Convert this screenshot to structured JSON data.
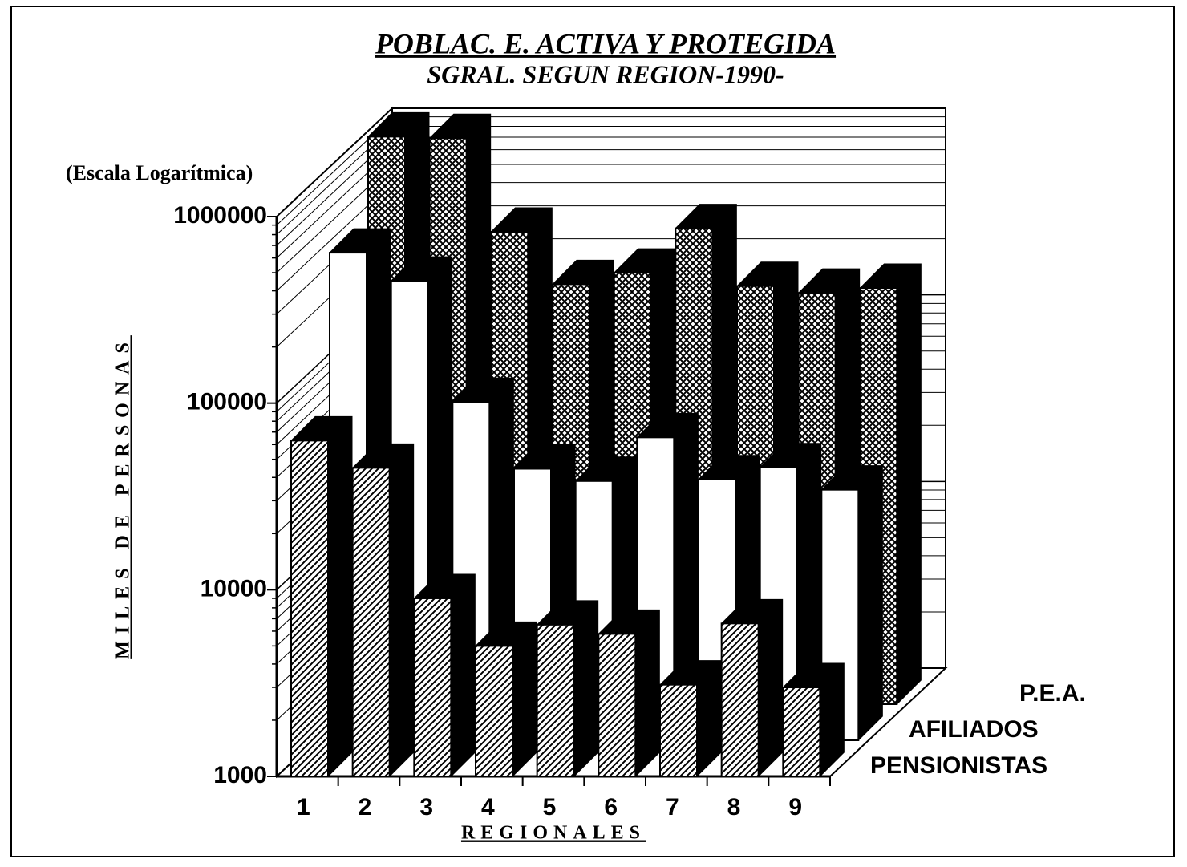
{
  "chart_data": {
    "type": "bar3d",
    "title": "POBLAC. E. ACTIVA Y PROTEGIDA",
    "subtitle": "SGRAL. SEGUN REGION-1990-",
    "annotation": "(Escala Logarítmica)",
    "y_label": "MILES DE PERSONAS",
    "x_label": "REGIONALES",
    "categories": [
      "1",
      "2",
      "3",
      "4",
      "5",
      "6",
      "7",
      "8",
      "9"
    ],
    "log_scale": true,
    "grid": true,
    "ylim": [
      1000,
      1000000
    ],
    "yticks": [
      1000,
      10000,
      100000,
      1000000
    ],
    "series": [
      {
        "name": "P.E.A.",
        "color": "#000000",
        "pattern": "crosshatch",
        "values": [
          1100000,
          1080000,
          340000,
          178000,
          205000,
          355000,
          174000,
          160000,
          170000
        ]
      },
      {
        "name": "AFILIADOS",
        "color": "#000000",
        "pattern": "none",
        "values": [
          410000,
          290000,
          65000,
          28500,
          24500,
          42000,
          25000,
          29000,
          22000
        ]
      },
      {
        "name": "PENSIONISTAS",
        "color": "#000000",
        "pattern": "hatch",
        "values": [
          63000,
          45000,
          9000,
          5000,
          6500,
          5800,
          3100,
          6600,
          3000
        ]
      }
    ]
  }
}
